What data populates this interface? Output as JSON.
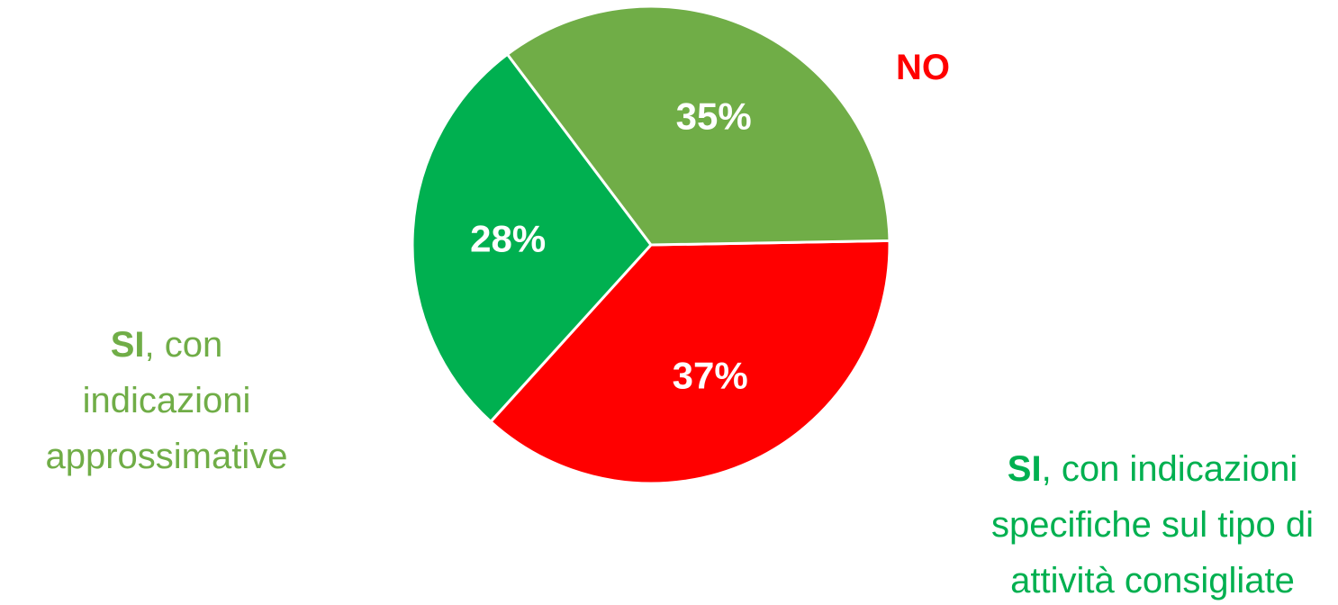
{
  "chart_data": {
    "type": "pie",
    "slices": [
      {
        "key": "no",
        "value": 37,
        "data_label": "37%",
        "color": "#ff0000",
        "category_lines": [
          "NO"
        ]
      },
      {
        "key": "si_specifiche",
        "value": 28,
        "data_label": "28%",
        "color": "#00b050",
        "category_lines": [
          "SI, con indicazioni",
          "specifiche sul tipo di",
          "attività consigliate"
        ]
      },
      {
        "key": "si_approssimative",
        "value": 35,
        "data_label": "35%",
        "color": "#70ad47",
        "category_lines": [
          "SI, con",
          "indicazioni",
          "approssimative"
        ]
      }
    ],
    "label_colors": {
      "no": "#ff0000",
      "si_specifiche": "#00b050",
      "si_approssimative": "#70ad47"
    },
    "legend": "none"
  },
  "labels": {
    "no": "NO",
    "si_approx": {
      "bold": "SI",
      "rest_line1": ", con",
      "line2": "indicazioni",
      "line3": "approssimative"
    },
    "si_spec": {
      "bold": "SI",
      "rest_line1": ", con indicazioni",
      "line2": "specifiche sul tipo di",
      "line3": "attività consigliate"
    }
  }
}
